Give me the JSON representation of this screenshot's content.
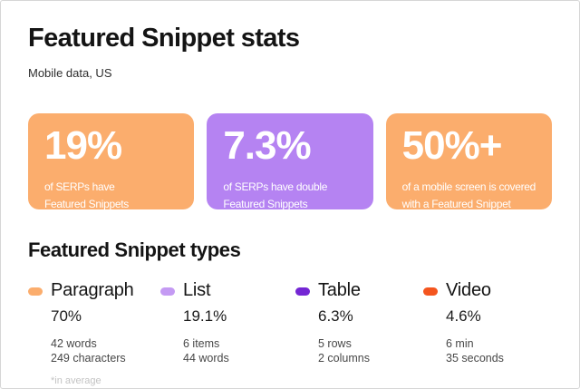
{
  "page": {
    "title": "Featured Snippet stats",
    "subtitle": "Mobile data, US",
    "footnote": "*in average"
  },
  "colors": {
    "orange": "#FBAD6D",
    "purple_card": "#B583F2",
    "list_pill": "#C49AF3",
    "table_pill": "#7426D4",
    "video_pill": "#F4551E"
  },
  "stat_cards": [
    {
      "value": "19%",
      "description_lines": [
        "of SERPs have",
        "Featured Snippets"
      ],
      "color": "#FBAD6D"
    },
    {
      "value": "7.3%",
      "description_lines": [
        "of SERPs have double",
        "Featured Snippets"
      ],
      "color": "#B583F2"
    },
    {
      "value": "50%+",
      "description_lines": [
        "of a mobile screen is covered",
        "with a Featured Snippet"
      ],
      "color": "#FBAD6D"
    }
  ],
  "types": {
    "title": "Featured Snippet types",
    "items": [
      {
        "label": "Paragraph",
        "percent": "70%",
        "details": [
          "42 words",
          "249 characters"
        ],
        "color": "#FBAD6D"
      },
      {
        "label": "List",
        "percent": "19.1%",
        "details": [
          "6 items",
          "44 words"
        ],
        "color": "#C49AF3"
      },
      {
        "label": "Table",
        "percent": "6.3%",
        "details": [
          "5 rows",
          "2 columns"
        ],
        "color": "#7426D4"
      },
      {
        "label": "Video",
        "percent": "4.6%",
        "details": [
          "6 min",
          "35 seconds"
        ],
        "color": "#F4551E"
      }
    ]
  }
}
